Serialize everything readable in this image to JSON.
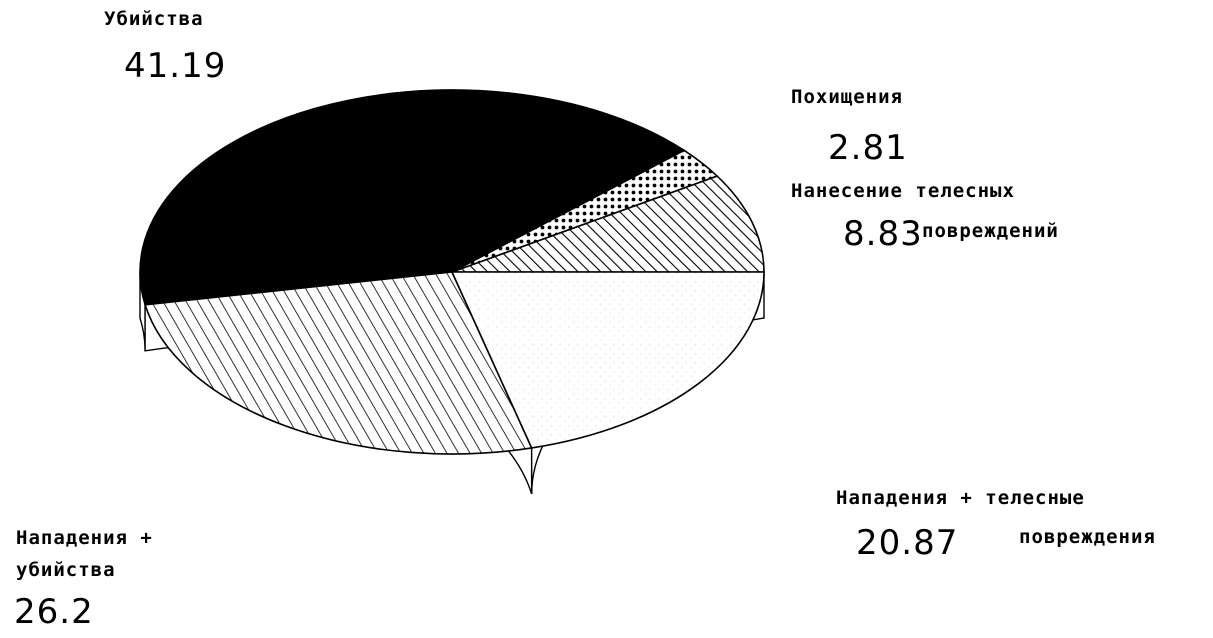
{
  "chart_data": {
    "type": "pie",
    "style": "3d",
    "categories": [
      "Убийства",
      "Похищения",
      "Нанесение телесных повреждений",
      "Нападения + телесные повреждения",
      "Нападения + убийства"
    ],
    "values": [
      41.19,
      2.81,
      8.83,
      20.87,
      26.2
    ],
    "value_labels": [
      "41.19",
      "2.81",
      "8.83",
      "20.87",
      "26.2"
    ],
    "label_lines": [
      [
        "Убийства"
      ],
      [
        "Похищения"
      ],
      [
        "Нанесение телесных",
        "повреждений"
      ],
      [
        "Нападения + телесные",
        "повреждения"
      ],
      [
        "Нападения +",
        "убийства"
      ]
    ],
    "fills": [
      "solid-black",
      "dots",
      "diagonal-fine",
      "light-stipple",
      "diagonal-wide"
    ],
    "legend": "none"
  }
}
